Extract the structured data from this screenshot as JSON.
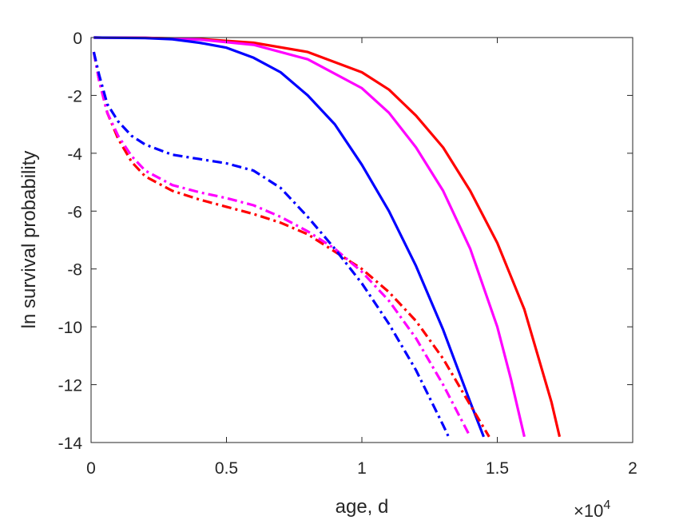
{
  "chart_data": {
    "type": "line",
    "title": "",
    "xlabel": "age, d",
    "ylabel": "ln survival probability",
    "x_exponent": {
      "base": "×10",
      "power": "4"
    },
    "xlim": [
      0,
      20000
    ],
    "ylim": [
      -14,
      0
    ],
    "x_ticks": [
      0,
      5000,
      10000,
      15000,
      20000
    ],
    "x_tick_labels": [
      "0",
      "0.5",
      "1",
      "1.5",
      "2"
    ],
    "y_ticks": [
      0,
      -2,
      -4,
      -6,
      -8,
      -10,
      -12,
      -14
    ],
    "y_tick_labels": [
      "0",
      "-2",
      "-4",
      "-6",
      "-8",
      "-10",
      "-12",
      "-14"
    ],
    "grid": false,
    "series": [
      {
        "color": "#ff0000",
        "style": "solid",
        "x": [
          100,
          2000,
          4000,
          6000,
          8000,
          10000,
          11000,
          12000,
          13000,
          14000,
          15000,
          16000,
          17000,
          17300
        ],
        "y": [
          0,
          -0.01,
          -0.05,
          -0.18,
          -0.5,
          -1.2,
          -1.8,
          -2.7,
          -3.8,
          -5.3,
          -7.1,
          -9.4,
          -12.6,
          -13.8
        ]
      },
      {
        "color": "#ff00ff",
        "style": "solid",
        "x": [
          100,
          2000,
          4000,
          6000,
          8000,
          10000,
          11000,
          12000,
          13000,
          14000,
          15000,
          15500,
          16000
        ],
        "y": [
          0,
          -0.01,
          -0.07,
          -0.25,
          -0.75,
          -1.75,
          -2.6,
          -3.8,
          -5.3,
          -7.3,
          -10.0,
          -11.8,
          -13.8
        ]
      },
      {
        "color": "#0000ff",
        "style": "solid",
        "x": [
          100,
          2000,
          3000,
          4000,
          5000,
          6000,
          7000,
          8000,
          9000,
          10000,
          11000,
          12000,
          13000,
          14000,
          14500
        ],
        "y": [
          0,
          -0.02,
          -0.06,
          -0.18,
          -0.35,
          -0.7,
          -1.2,
          -2.0,
          -3.0,
          -4.4,
          -6.0,
          -7.9,
          -10.1,
          -12.6,
          -13.8
        ]
      },
      {
        "color": "#ff0000",
        "style": "dashdot",
        "x": [
          100,
          300,
          600,
          1000,
          1500,
          2000,
          3000,
          4000,
          5000,
          6000,
          7000,
          8000,
          9000,
          10000,
          11000,
          12000,
          13000,
          14000,
          14700
        ],
        "y": [
          -0.5,
          -1.5,
          -2.6,
          -3.5,
          -4.3,
          -4.8,
          -5.3,
          -5.6,
          -5.85,
          -6.1,
          -6.4,
          -6.8,
          -7.4,
          -8.0,
          -8.8,
          -9.8,
          -11.1,
          -12.7,
          -13.8
        ]
      },
      {
        "color": "#ff00ff",
        "style": "dashdot",
        "x": [
          100,
          300,
          600,
          1000,
          1500,
          2000,
          3000,
          4000,
          5000,
          6000,
          7000,
          8000,
          9000,
          10000,
          11000,
          12000,
          13000,
          14000
        ],
        "y": [
          -0.5,
          -1.5,
          -2.6,
          -3.4,
          -4.1,
          -4.6,
          -5.1,
          -5.35,
          -5.55,
          -5.8,
          -6.2,
          -6.7,
          -7.3,
          -8.1,
          -9.1,
          -10.4,
          -12.0,
          -13.8
        ]
      },
      {
        "color": "#0000ff",
        "style": "dashdot",
        "x": [
          100,
          300,
          600,
          1000,
          1500,
          2000,
          3000,
          4000,
          5000,
          6000,
          7000,
          8000,
          9000,
          10000,
          11000,
          12000,
          13000,
          13200
        ],
        "y": [
          -0.5,
          -1.3,
          -2.3,
          -2.9,
          -3.4,
          -3.7,
          -4.05,
          -4.2,
          -4.35,
          -4.6,
          -5.2,
          -6.2,
          -7.3,
          -8.5,
          -9.9,
          -11.5,
          -13.4,
          -13.8
        ]
      }
    ]
  }
}
